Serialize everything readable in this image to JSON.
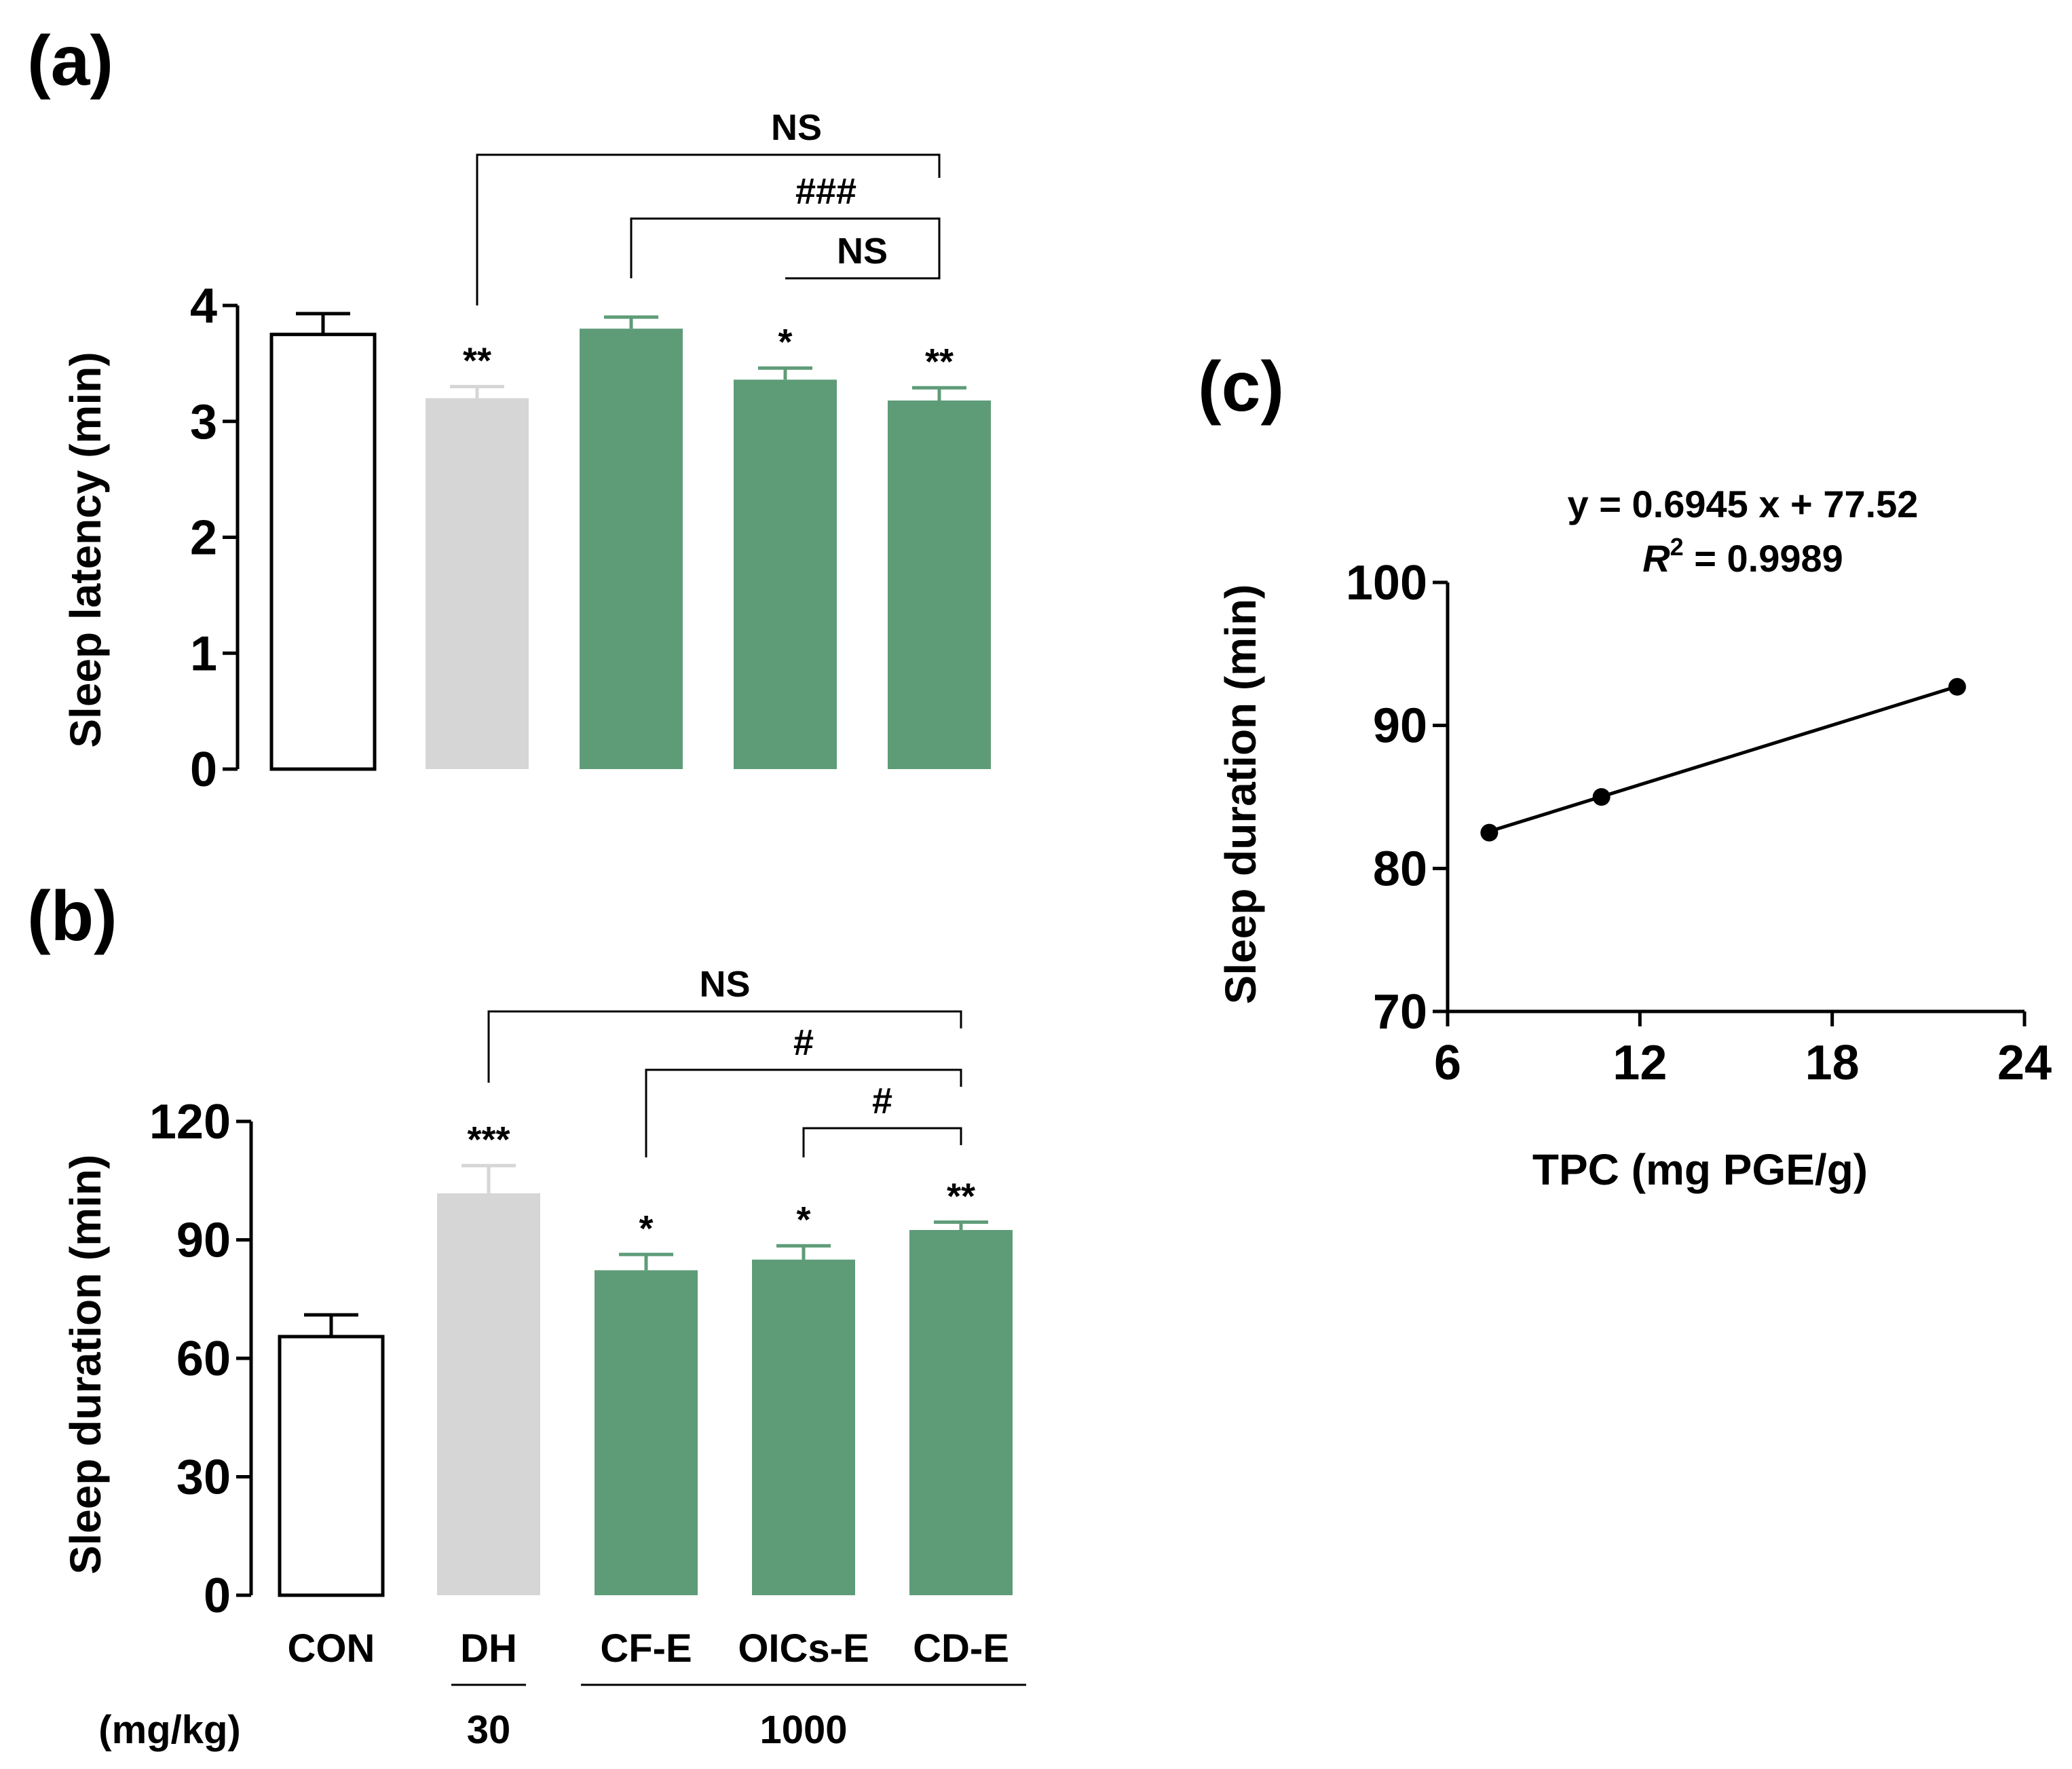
{
  "chart_data": [
    {
      "panel": "(a)",
      "type": "bar",
      "categories": [
        "CON",
        "DH",
        "CF-E",
        "OICs-E",
        "CD-E"
      ],
      "values": [
        3.75,
        3.2,
        3.8,
        3.36,
        3.18
      ],
      "errors": [
        0.18,
        0.1,
        0.1,
        0.1,
        0.11
      ],
      "colors": [
        "#ffffff",
        "#d6d6d6",
        "#5e9c78",
        "#5e9c78",
        "#5e9c78"
      ],
      "ylabel": "Sleep latency (min)",
      "ylim": [
        0,
        4
      ],
      "yticks": [
        "0",
        "1",
        "2",
        "3",
        "4"
      ],
      "significance": [
        "",
        "**",
        "",
        "*",
        "**"
      ],
      "brackets": [
        {
          "from": 1,
          "to": 4,
          "label": "NS"
        },
        {
          "from": 2,
          "to": 4,
          "label": "###"
        },
        {
          "from": 3,
          "to": 4,
          "label": "NS"
        }
      ]
    },
    {
      "panel": "(b)",
      "type": "bar",
      "categories": [
        "CON",
        "DH",
        "CF-E",
        "OICs-E",
        "CD-E"
      ],
      "values": [
        65.5,
        101.8,
        82.3,
        85,
        92.5
      ],
      "errors": [
        5.5,
        7,
        4,
        3.5,
        2
      ],
      "colors": [
        "#ffffff",
        "#d6d6d6",
        "#5e9c78",
        "#5e9c78",
        "#5e9c78"
      ],
      "ylabel": "Sleep duration (min)",
      "ylim": [
        0,
        120
      ],
      "yticks": [
        "0",
        "30",
        "60",
        "90",
        "120"
      ],
      "significance": [
        "",
        "***",
        "*",
        "*",
        "**"
      ],
      "brackets": [
        {
          "from": 1,
          "to": 4,
          "label": "NS"
        },
        {
          "from": 2,
          "to": 4,
          "label": "#"
        },
        {
          "from": 3,
          "to": 4,
          "label": "#"
        }
      ],
      "dose_unit": "(mg/kg)",
      "doses": [
        {
          "label": "30",
          "from": 1,
          "to": 1
        },
        {
          "label": "1000",
          "from": 2,
          "to": 4
        }
      ]
    },
    {
      "panel": "(c)",
      "type": "scatter",
      "x": [
        7.3,
        10.8,
        21.9
      ],
      "y": [
        82.5,
        85,
        92.7
      ],
      "fit": {
        "slope": 0.6945,
        "intercept": 77.52
      },
      "equation": "y = 0.6945 x + 77.52",
      "r2_label": "R",
      "r2_sup": "2",
      "r2_value": " = 0.9989",
      "xlabel": "TPC (mg PGE/g)",
      "ylabel": "Sleep duration (min)",
      "xlim": [
        6,
        24
      ],
      "ylim": [
        70,
        100
      ],
      "xticks": [
        "6",
        "12",
        "18",
        "24"
      ],
      "yticks": [
        "70",
        "80",
        "90",
        "100"
      ]
    }
  ]
}
